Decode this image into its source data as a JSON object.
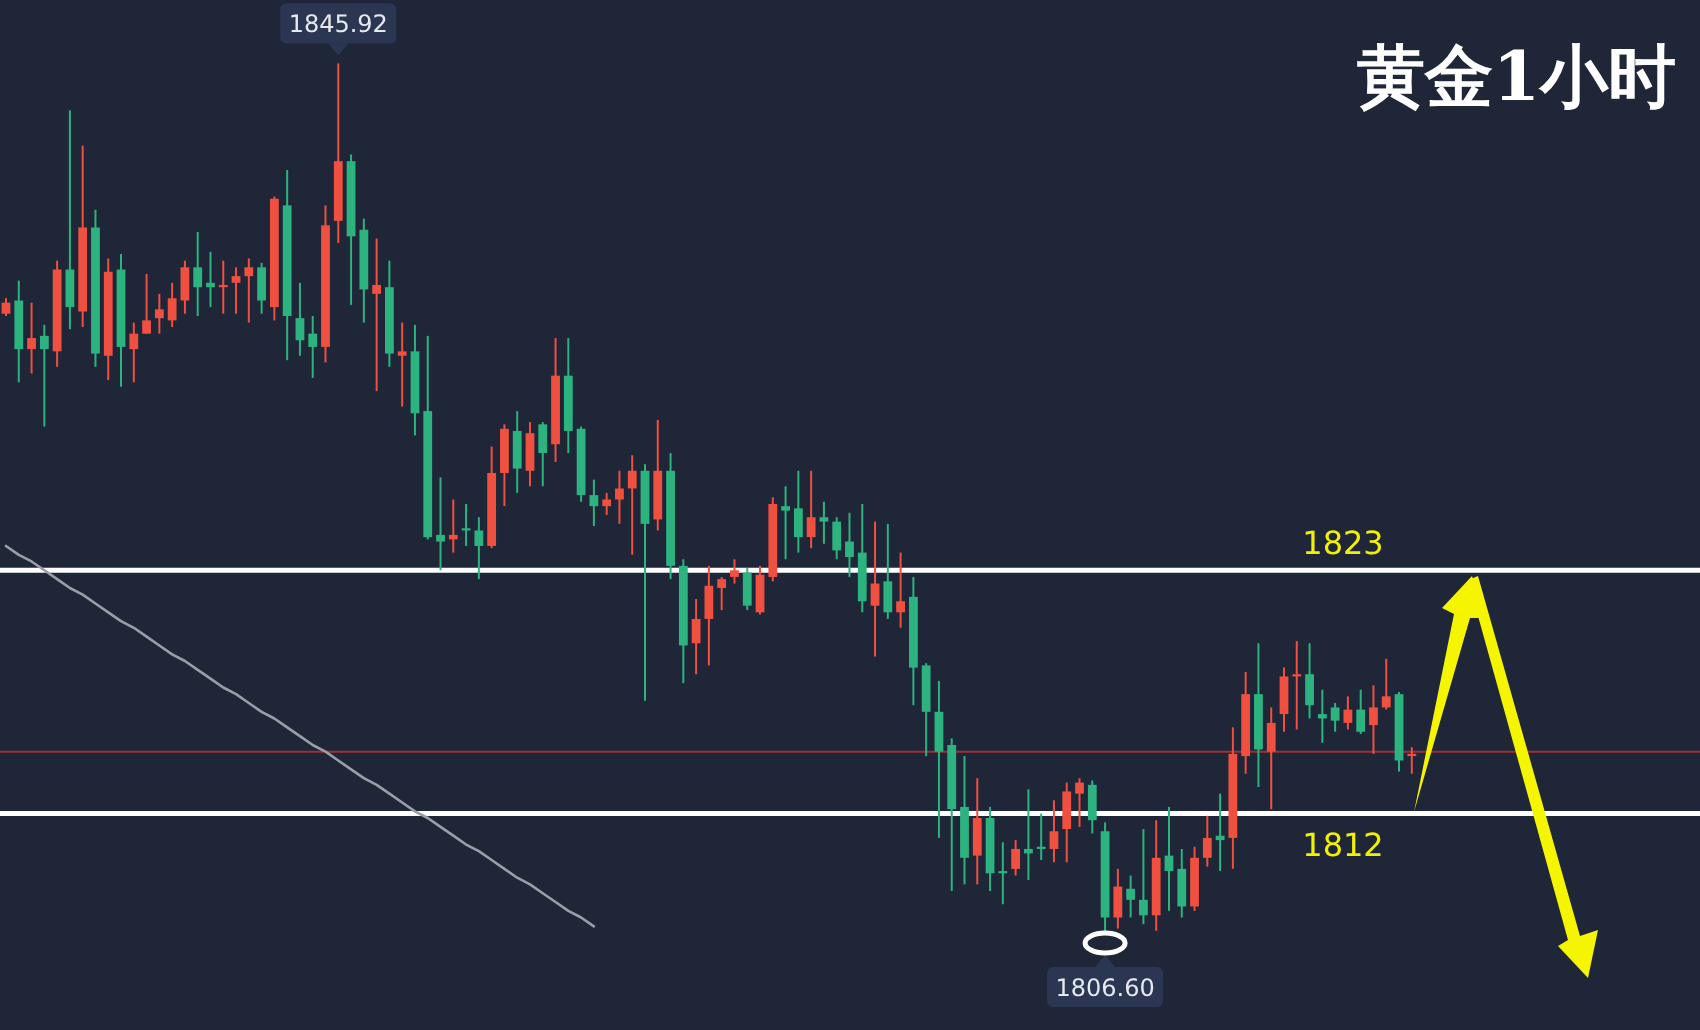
{
  "chart_data": {
    "type": "candlestick",
    "title": "黄金1小时",
    "categories": [
      null,
      null,
      null,
      null,
      null,
      null,
      null,
      null,
      null,
      null,
      null,
      null,
      null,
      null,
      null,
      null,
      null,
      null,
      null,
      null,
      null,
      null,
      null,
      null,
      null,
      null,
      null,
      null,
      null,
      null,
      null,
      null,
      null,
      null,
      null,
      null,
      null,
      null,
      null,
      null,
      null,
      null,
      null,
      null,
      null,
      null,
      null,
      null,
      null,
      null,
      null,
      null,
      null,
      null,
      null,
      null,
      null,
      null,
      null,
      null,
      null,
      null,
      null,
      null,
      null,
      null,
      null,
      null,
      null,
      null,
      null,
      null,
      null,
      null,
      null,
      null,
      null,
      null,
      null,
      null,
      null,
      null,
      null,
      null,
      null,
      null,
      null,
      null,
      null,
      null,
      null,
      null,
      null,
      null,
      null,
      null,
      null,
      null,
      null,
      null,
      null,
      null,
      null,
      null,
      null,
      null,
      null,
      null,
      null,
      null,
      null
    ],
    "ohlc": [
      [
        1834.6,
        1835.3,
        1834.5,
        1835.1
      ],
      [
        1835.2,
        1836.1,
        1831.5,
        1833.0
      ],
      [
        1833.0,
        1835.1,
        1831.9,
        1833.5
      ],
      [
        1833.6,
        1834.1,
        1829.5,
        1833.0
      ],
      [
        1832.9,
        1837.0,
        1832.2,
        1836.6
      ],
      [
        1836.6,
        1843.8,
        1833.9,
        1834.9
      ],
      [
        1834.7,
        1842.2,
        1834.0,
        1838.5
      ],
      [
        1838.5,
        1839.3,
        1832.2,
        1832.8
      ],
      [
        1832.7,
        1837.1,
        1831.6,
        1836.5
      ],
      [
        1836.6,
        1837.3,
        1831.3,
        1833.1
      ],
      [
        1833.0,
        1834.2,
        1831.5,
        1833.7
      ],
      [
        1833.7,
        1836.4,
        1833.7,
        1834.3
      ],
      [
        1834.4,
        1835.5,
        1833.7,
        1834.8
      ],
      [
        1834.3,
        1836.0,
        1834.0,
        1835.3
      ],
      [
        1835.2,
        1837.0,
        1834.6,
        1836.7
      ],
      [
        1836.7,
        1838.3,
        1834.5,
        1835.8
      ],
      [
        1836.0,
        1837.4,
        1834.9,
        1835.8
      ],
      [
        1835.8,
        1837.0,
        1834.6,
        1835.9
      ],
      [
        1836.0,
        1836.7,
        1834.6,
        1836.3
      ],
      [
        1836.3,
        1837.1,
        1834.2,
        1836.7
      ],
      [
        1836.7,
        1836.9,
        1834.6,
        1835.2
      ],
      [
        1834.9,
        1839.9,
        1834.3,
        1839.8
      ],
      [
        1839.5,
        1841.1,
        1832.5,
        1834.5
      ],
      [
        1834.4,
        1836.0,
        1832.7,
        1833.4
      ],
      [
        1833.7,
        1834.5,
        1831.7,
        1833.1
      ],
      [
        1833.1,
        1839.5,
        1832.4,
        1838.6
      ],
      [
        1838.8,
        1845.92,
        1837.8,
        1841.5
      ],
      [
        1841.5,
        1841.8,
        1835.0,
        1838.1
      ],
      [
        1838.4,
        1838.9,
        1834.2,
        1835.7
      ],
      [
        1835.5,
        1838.0,
        1831.1,
        1835.9
      ],
      [
        1835.8,
        1837.0,
        1832.2,
        1832.8
      ],
      [
        1832.7,
        1834.2,
        1830.4,
        1832.9
      ],
      [
        1832.9,
        1834.1,
        1829.1,
        1830.1
      ],
      [
        1830.2,
        1833.6,
        1824.4,
        1824.5
      ],
      [
        1824.6,
        1827.2,
        1823.0,
        1824.3
      ],
      [
        1824.4,
        1826.2,
        1823.8,
        1824.6
      ],
      [
        1824.9,
        1826.0,
        1824.1,
        1824.8
      ],
      [
        1824.8,
        1825.4,
        1822.6,
        1824.1
      ],
      [
        1824.1,
        1828.6,
        1824.0,
        1827.4
      ],
      [
        1827.4,
        1829.6,
        1825.9,
        1829.4
      ],
      [
        1829.3,
        1830.2,
        1826.5,
        1827.6
      ],
      [
        1827.5,
        1829.7,
        1826.8,
        1829.2
      ],
      [
        1829.6,
        1829.7,
        1826.8,
        1828.3
      ],
      [
        1828.7,
        1833.5,
        1827.9,
        1831.8
      ],
      [
        1831.8,
        1833.5,
        1828.3,
        1829.3
      ],
      [
        1829.4,
        1829.5,
        1826.1,
        1826.4
      ],
      [
        1826.4,
        1827.1,
        1825.0,
        1825.9
      ],
      [
        1825.9,
        1826.5,
        1825.5,
        1826.2
      ],
      [
        1826.2,
        1827.5,
        1825.1,
        1826.7
      ],
      [
        1826.7,
        1828.2,
        1823.7,
        1827.5
      ],
      [
        1827.5,
        1827.8,
        1817.1,
        1825.1
      ],
      [
        1825.3,
        1829.8,
        1824.8,
        1827.5
      ],
      [
        1827.5,
        1828.3,
        1822.6,
        1823.2
      ],
      [
        1823.2,
        1823.5,
        1817.9,
        1819.6
      ],
      [
        1819.7,
        1821.7,
        1818.3,
        1820.8
      ],
      [
        1820.8,
        1823.2,
        1818.7,
        1822.3
      ],
      [
        1822.2,
        1822.7,
        1821.2,
        1822.6
      ],
      [
        1822.7,
        1823.5,
        1822.4,
        1823.0
      ],
      [
        1822.9,
        1823.1,
        1821.2,
        1821.4
      ],
      [
        1821.1,
        1823.2,
        1821.0,
        1822.8
      ],
      [
        1822.7,
        1826.3,
        1822.5,
        1826.0
      ],
      [
        1825.9,
        1826.8,
        1823.5,
        1825.7
      ],
      [
        1825.8,
        1827.5,
        1823.8,
        1824.5
      ],
      [
        1824.5,
        1827.5,
        1824.0,
        1825.4
      ],
      [
        1825.4,
        1826.1,
        1824.2,
        1825.2
      ],
      [
        1825.2,
        1825.4,
        1823.5,
        1823.9
      ],
      [
        1824.3,
        1825.6,
        1822.7,
        1823.6
      ],
      [
        1823.8,
        1826.0,
        1821.1,
        1821.6
      ],
      [
        1821.4,
        1825.2,
        1819.1,
        1822.4
      ],
      [
        1822.5,
        1825.1,
        1820.8,
        1821.1
      ],
      [
        1821.1,
        1823.8,
        1820.4,
        1821.6
      ],
      [
        1821.8,
        1822.7,
        1816.9,
        1818.6
      ],
      [
        1818.7,
        1818.8,
        1814.6,
        1816.6
      ],
      [
        1816.6,
        1818.0,
        1810.9,
        1814.8
      ],
      [
        1815.1,
        1815.4,
        1808.5,
        1812.2
      ],
      [
        1812.3,
        1814.6,
        1808.8,
        1810.0
      ],
      [
        1810.1,
        1813.6,
        1808.8,
        1811.8
      ],
      [
        1811.8,
        1812.3,
        1808.5,
        1809.3
      ],
      [
        1809.4,
        1810.7,
        1807.9,
        1809.3
      ],
      [
        1809.5,
        1810.8,
        1809.2,
        1810.4
      ],
      [
        1810.4,
        1813.1,
        1809.0,
        1810.2
      ],
      [
        1810.5,
        1812.0,
        1809.9,
        1810.4
      ],
      [
        1810.4,
        1812.6,
        1809.8,
        1811.2
      ],
      [
        1811.3,
        1813.4,
        1809.8,
        1813.0
      ],
      [
        1812.9,
        1813.6,
        1811.4,
        1813.4
      ],
      [
        1813.3,
        1813.5,
        1811.1,
        1811.7
      ],
      [
        1811.2,
        1811.6,
        1806.6,
        1807.3
      ],
      [
        1807.3,
        1809.5,
        1806.8,
        1808.7
      ],
      [
        1808.6,
        1809.2,
        1807.3,
        1808.1
      ],
      [
        1808.1,
        1811.3,
        1807.0,
        1807.4
      ],
      [
        1807.4,
        1811.7,
        1806.7,
        1810.0
      ],
      [
        1810.1,
        1812.3,
        1807.6,
        1809.4
      ],
      [
        1809.5,
        1810.4,
        1807.3,
        1807.8
      ],
      [
        1807.8,
        1810.5,
        1807.6,
        1810.0
      ],
      [
        1810.0,
        1811.9,
        1809.6,
        1810.9
      ],
      [
        1811.0,
        1812.9,
        1809.4,
        1810.8
      ],
      [
        1810.9,
        1815.9,
        1809.5,
        1814.7
      ],
      [
        1814.6,
        1818.4,
        1813.8,
        1817.4
      ],
      [
        1817.4,
        1819.7,
        1813.2,
        1814.9
      ],
      [
        1814.8,
        1816.8,
        1812.2,
        1816.1
      ],
      [
        1816.5,
        1818.6,
        1815.7,
        1818.2
      ],
      [
        1818.2,
        1819.8,
        1815.8,
        1818.3
      ],
      [
        1818.3,
        1819.7,
        1816.3,
        1816.9
      ],
      [
        1816.5,
        1817.6,
        1815.2,
        1816.3
      ],
      [
        1816.8,
        1817.0,
        1815.7,
        1816.2
      ],
      [
        1816.1,
        1817.3,
        1815.8,
        1816.7
      ],
      [
        1816.7,
        1817.6,
        1815.6,
        1815.7
      ],
      [
        1816.0,
        1817.8,
        1814.7,
        1816.8
      ],
      [
        1816.8,
        1819.0,
        1816.7,
        1817.3
      ],
      [
        1817.4,
        1817.5,
        1813.9,
        1814.4
      ],
      [
        1814.6,
        1815.0,
        1813.8,
        1814.7
      ]
    ],
    "colors": [
      "#ef5040",
      "#2db37f",
      "#ef5040",
      "#2db37f",
      "#ef5040",
      "#2db37f",
      "#ef5040",
      "#2db37f",
      "#ef5040",
      "#2db37f",
      "#ef5040",
      "#ef5040",
      "#ef5040",
      "#ef5040",
      "#ef5040",
      "#2db37f",
      "#2db37f",
      "#ef5040",
      "#ef5040",
      "#ef5040",
      "#2db37f",
      "#ef5040",
      "#2db37f",
      "#2db37f",
      "#2db37f",
      "#ef5040",
      "#ef5040",
      "#2db37f",
      "#2db37f",
      "#ef5040",
      "#2db37f",
      "#ef5040",
      "#2db37f",
      "#2db37f",
      "#2db37f",
      "#ef5040",
      "#2db37f",
      "#2db37f",
      "#ef5040",
      "#ef5040",
      "#2db37f",
      "#ef5040",
      "#2db37f",
      "#ef5040",
      "#2db37f",
      "#2db37f",
      "#2db37f",
      "#ef5040",
      "#ef5040",
      "#ef5040",
      "#2db37f",
      "#ef5040",
      "#2db37f",
      "#2db37f",
      "#ef5040",
      "#ef5040",
      "#ef5040",
      "#ef5040",
      "#2db37f",
      "#ef5040",
      "#ef5040",
      "#2db37f",
      "#2db37f",
      "#ef5040",
      "#2db37f",
      "#2db37f",
      "#2db37f",
      "#2db37f",
      "#ef5040",
      "#2db37f",
      "#ef5040",
      "#2db37f",
      "#2db37f",
      "#2db37f",
      "#2db37f",
      "#2db37f",
      "#ef5040",
      "#2db37f",
      "#2db37f",
      "#ef5040",
      "#2db37f",
      "#2db37f",
      "#ef5040",
      "#ef5040",
      "#ef5040",
      "#2db37f",
      "#2db37f",
      "#ef5040",
      "#2db37f",
      "#2db37f",
      "#ef5040",
      "#2db37f",
      "#2db37f",
      "#ef5040",
      "#ef5040",
      "#2db37f",
      "#ef5040",
      "#ef5040",
      "#2db37f",
      "#ef5040",
      "#ef5040",
      "#ef5040",
      "#2db37f",
      "#2db37f",
      "#2db37f",
      "#ef5040",
      "#2db37f",
      "#ef5040",
      "#ef5040",
      "#2db37f",
      "#ef5040"
    ],
    "series": [
      {
        "type": "line",
        "color": "#9a9ea6",
        "values": [
          1824.1,
          1823.7,
          1823.4,
          1823.0,
          1822.6,
          1822.2,
          1821.9,
          1821.5,
          1821.1,
          1820.7,
          1820.4,
          1820.0,
          1819.6,
          1819.2,
          1818.9,
          1818.5,
          1818.1,
          1817.7,
          1817.4,
          1817.0,
          1816.6,
          1816.3,
          1815.9,
          1815.5,
          1815.1,
          1814.8,
          1814.4,
          1814.0,
          1813.6,
          1813.3,
          1812.9,
          1812.5,
          1812.1,
          1811.8,
          1811.4,
          1811.0,
          1810.6,
          1810.3,
          1809.9,
          1809.5,
          1809.1,
          1808.8,
          1808.4,
          1808.0,
          1807.6,
          1807.3,
          1806.9,
          null,
          null,
          null,
          null,
          null,
          null,
          null,
          null,
          null,
          null,
          null,
          null,
          null,
          null,
          null,
          null,
          null,
          null,
          null,
          null,
          null,
          null,
          null,
          null,
          null,
          null,
          null,
          null,
          null,
          null,
          null,
          null,
          null,
          null,
          null,
          null,
          null,
          null,
          null,
          null,
          null,
          null,
          null,
          null,
          null,
          null,
          null,
          null,
          null,
          null,
          null,
          null,
          null,
          null,
          null,
          null,
          null,
          null,
          null,
          null,
          null,
          null,
          null,
          null
        ]
      }
    ],
    "ref_lines": [
      {
        "axis": "y",
        "value": 1814.8,
        "color": "#9c3035"
      },
      {
        "axis": "y",
        "value": 1823,
        "label": "1823",
        "color": "#ffffff"
      },
      {
        "axis": "y",
        "value": 1812,
        "label": "1812",
        "color": "#ffffff"
      }
    ],
    "annotations": [
      {
        "text": "1845.92",
        "y": 1845.92
      },
      {
        "text": "1806.60",
        "y": 1806.6
      }
    ]
  }
}
